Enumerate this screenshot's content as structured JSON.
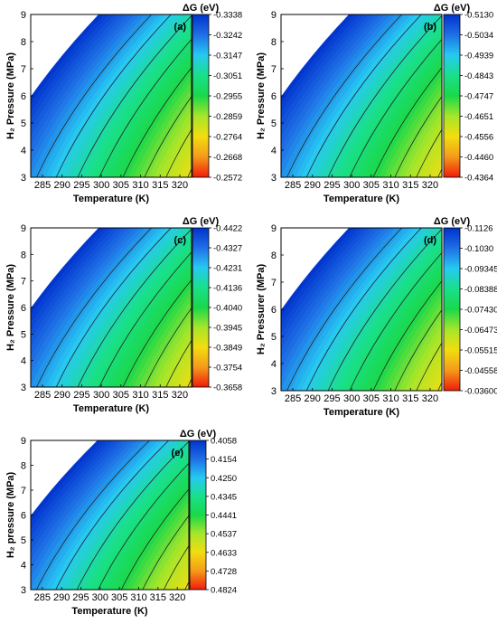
{
  "colors": {
    "scale": [
      "#0033cc",
      "#1f6fe6",
      "#27c9f2",
      "#19e08a",
      "#1ad84a",
      "#a6e62a",
      "#f2dd10",
      "#f59a1a",
      "#f01c0c"
    ],
    "contour": "#222222"
  },
  "chart_data": [
    {
      "type": "heatmap",
      "panel_label": "(a)",
      "xlabel": "Temperature (K)",
      "ylabel": "H₂ Pressure (MPa)",
      "colorbar_label": "ΔG (eV)",
      "xlim": [
        282,
        323
      ],
      "ylim": [
        3,
        9
      ],
      "x_ticks": [
        "285",
        "290",
        "295",
        "300",
        "305",
        "310",
        "315",
        "320"
      ],
      "y_ticks": [
        "3",
        "4",
        "5",
        "6",
        "7",
        "8",
        "9"
      ],
      "colorbar_ticks": [
        "-0.3338",
        "-0.3242",
        "-0.3147",
        "-0.3051",
        "-0.2955",
        "-0.2859",
        "-0.2764",
        "-0.2668",
        "-0.2572"
      ],
      "value_range": [
        -0.3338,
        -0.2572
      ],
      "contour_levels": 8
    },
    {
      "type": "heatmap",
      "panel_label": "(b)",
      "xlabel": "Temperature (K)",
      "ylabel": "H₂ Pressure (MPa)",
      "colorbar_label": "ΔG (eV)",
      "xlim": [
        282,
        323
      ],
      "ylim": [
        3,
        9
      ],
      "x_ticks": [
        "285",
        "290",
        "295",
        "300",
        "305",
        "310",
        "315",
        "320"
      ],
      "y_ticks": [
        "3",
        "4",
        "5",
        "6",
        "7",
        "8",
        "9"
      ],
      "colorbar_ticks": [
        "-0.5130",
        "-0.5034",
        "-0.4939",
        "-0.4843",
        "-0.4747",
        "-0.4651",
        "-0.4556",
        "-0.4460",
        "-0.4364"
      ],
      "value_range": [
        -0.513,
        -0.4364
      ],
      "contour_levels": 8
    },
    {
      "type": "heatmap",
      "panel_label": "(c)",
      "xlabel": "Temperature (K)",
      "ylabel": "H₂ Pressure (MPa)",
      "colorbar_label": "ΔG (eV)",
      "xlim": [
        282,
        323
      ],
      "ylim": [
        3,
        9
      ],
      "x_ticks": [
        "285",
        "290",
        "295",
        "300",
        "305",
        "310",
        "315",
        "320"
      ],
      "y_ticks": [
        "3",
        "4",
        "5",
        "6",
        "7",
        "8",
        "9"
      ],
      "colorbar_ticks": [
        "-0.4422",
        "-0.4327",
        "-0.4231",
        "-0.4136",
        "-0.4040",
        "-0.3945",
        "-0.3849",
        "-0.3754",
        "-0.3658"
      ],
      "value_range": [
        -0.4422,
        -0.3658
      ],
      "contour_levels": 8
    },
    {
      "type": "heatmap",
      "panel_label": "(d)",
      "xlabel": "Temperature (K)",
      "ylabel": "H₂ Pressurer (MPa)",
      "colorbar_label": "ΔG (eV)",
      "xlim": [
        282,
        323
      ],
      "ylim": [
        3,
        9
      ],
      "x_ticks": [
        "285",
        "290",
        "295",
        "300",
        "305",
        "310",
        "315",
        "320"
      ],
      "y_ticks": [
        "3",
        "4",
        "5",
        "6",
        "7",
        "8",
        "9"
      ],
      "colorbar_ticks": [
        "-0.1126",
        "-0.1030",
        "-0.09345",
        "-0.08388",
        "-0.07430",
        "-0.06473",
        "-0.05515",
        "-0.04558",
        "-0.03600"
      ],
      "value_range": [
        -0.1126,
        -0.036
      ],
      "contour_levels": 8
    },
    {
      "type": "heatmap",
      "panel_label": "(e)",
      "xlabel": "Temperature (K)",
      "ylabel": "H₂ pressure (MPa)",
      "colorbar_label": "ΔG (eV)",
      "xlim": [
        282,
        323
      ],
      "ylim": [
        3,
        9
      ],
      "x_ticks": [
        "285",
        "290",
        "295",
        "300",
        "305",
        "310",
        "315",
        "320"
      ],
      "y_ticks": [
        "3",
        "4",
        "5",
        "6",
        "7",
        "8",
        "9"
      ],
      "colorbar_ticks": [
        "0.4058",
        "0.4154",
        "0.4250",
        "0.4345",
        "0.4441",
        "0.4537",
        "0.4633",
        "0.4728",
        "0.4824"
      ],
      "value_range": [
        0.4058,
        0.4824
      ],
      "contour_levels": 8
    }
  ]
}
